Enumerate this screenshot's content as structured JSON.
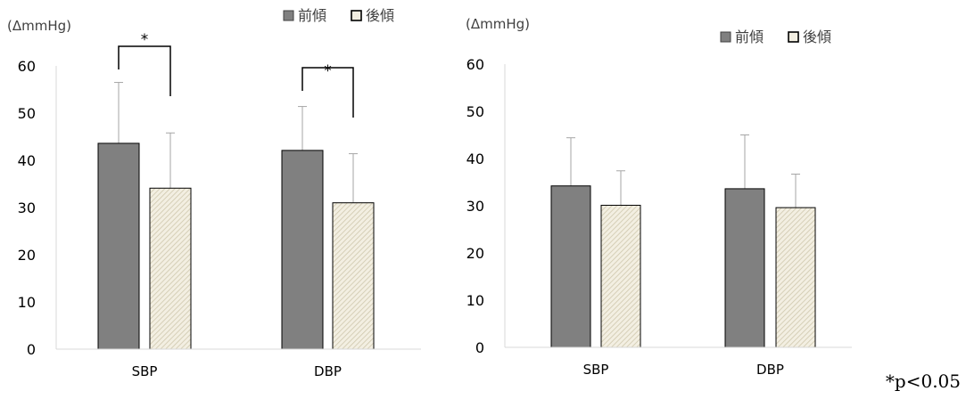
{
  "colors": {
    "front": "#808080",
    "back_bg": "#f3efe2",
    "back_hatch": "#cfc7ad",
    "axis": "#d9d9d9",
    "error": "#a6a6a6"
  },
  "note": "*p<0.05",
  "chart_data": [
    {
      "type": "bar",
      "unit_label": "(ΔmmHg)",
      "categories": [
        "SBP",
        "DBP"
      ],
      "series": [
        {
          "name": "前傾",
          "values": [
            43.6,
            42.1
          ],
          "errors": [
            12.9,
            9.3
          ]
        },
        {
          "name": "後傾",
          "values": [
            34.1,
            31.0
          ],
          "errors": [
            11.7,
            10.4
          ]
        }
      ],
      "ylim": [
        0,
        60
      ],
      "yticks": [
        0,
        10,
        20,
        30,
        40,
        50,
        60
      ],
      "grid": false,
      "legend": "top-right",
      "significance": [
        {
          "category": "SBP",
          "label": "*"
        },
        {
          "category": "DBP",
          "label": "*"
        }
      ]
    },
    {
      "type": "bar",
      "unit_label": "(ΔmmHg)",
      "categories": [
        "SBP",
        "DBP"
      ],
      "series": [
        {
          "name": "前傾",
          "values": [
            34.2,
            33.6
          ],
          "errors": [
            10.2,
            11.4
          ]
        },
        {
          "name": "後傾",
          "values": [
            30.1,
            29.6
          ],
          "errors": [
            7.3,
            7.1
          ]
        }
      ],
      "ylim": [
        0,
        60
      ],
      "yticks": [
        0,
        10,
        20,
        30,
        40,
        50,
        60
      ],
      "grid": false,
      "legend": "top-right",
      "significance": []
    }
  ]
}
